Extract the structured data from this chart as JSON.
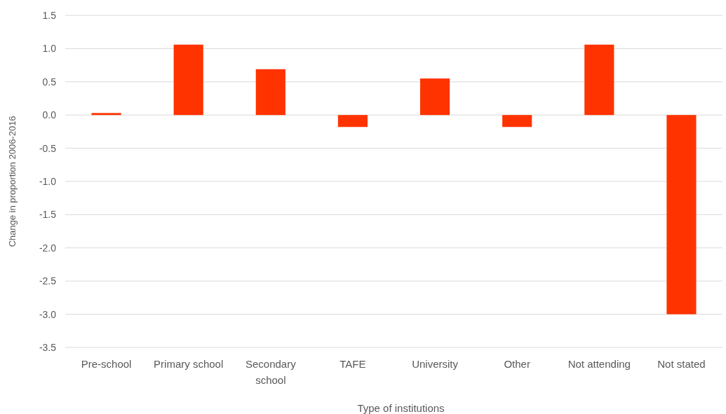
{
  "chart_data": {
    "type": "bar",
    "xlabel": "Type of institutions",
    "ylabel": "Change in proportion 2006-2016",
    "categories": [
      "Pre-school",
      "Primary school",
      "Secondary school",
      "TAFE",
      "University",
      "Other",
      "Not attending",
      "Not stated"
    ],
    "values": [
      0.03,
      1.06,
      0.69,
      -0.18,
      0.55,
      -0.18,
      1.06,
      -3.0
    ],
    "color": "#ff3300",
    "ylim": [
      -3.5,
      1.5
    ],
    "yticks": [
      {
        "value": -3.5,
        "label": "-3.5"
      },
      {
        "value": -3,
        "label": "-3.0"
      },
      {
        "value": -2.5,
        "label": "-2.5"
      },
      {
        "value": -2,
        "label": "-2.0"
      },
      {
        "value": -1.5,
        "label": "-1.5"
      },
      {
        "value": -1,
        "label": "-1.0"
      },
      {
        "value": -0.5,
        "label": "-0.5"
      },
      {
        "value": 0,
        "label": "0.0"
      },
      {
        "value": 0.5,
        "label": "0.5"
      },
      {
        "value": 1,
        "label": "1.0"
      },
      {
        "value": 1.5,
        "label": "1.5"
      }
    ],
    "grid": "y"
  }
}
